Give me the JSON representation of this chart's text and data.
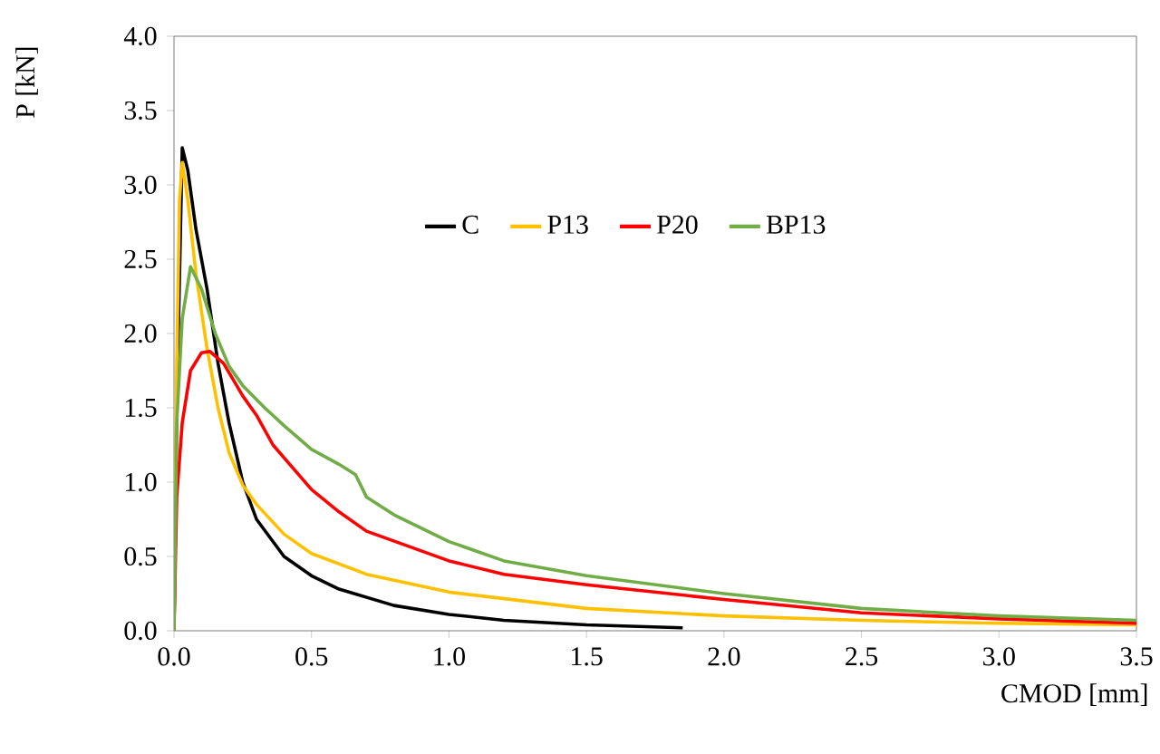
{
  "chart_data": {
    "type": "line",
    "xlabel": "CMOD [mm]",
    "ylabel": "P [kN]",
    "xlim": [
      0,
      3.5
    ],
    "ylim": [
      0,
      4
    ],
    "xticks": [
      {
        "value": 0,
        "label": "0.0"
      },
      0.5,
      {
        "value": 1,
        "label": "1.0"
      },
      1.5,
      {
        "value": 2,
        "label": "2.0"
      },
      2.5,
      {
        "value": 3,
        "label": "3.0"
      },
      3.5
    ],
    "yticks": [
      {
        "value": 0,
        "label": "0.0"
      },
      0.5,
      {
        "value": 1,
        "label": "1.0"
      },
      1.5,
      {
        "value": 2,
        "label": "2.0"
      },
      2.5,
      {
        "value": 3,
        "label": "3.0"
      },
      3.5,
      {
        "value": 4,
        "label": "4.0"
      }
    ],
    "grid": false,
    "legend": "top",
    "marker": "none",
    "line_style": "solid",
    "series": [
      {
        "name": "C",
        "color": "#000000",
        "x": [
          0,
          0.01,
          0.03,
          0.05,
          0.08,
          0.12,
          0.16,
          0.2,
          0.25,
          0.3,
          0.4,
          0.5,
          0.6,
          0.8,
          1.0,
          1.2,
          1.5,
          1.85
        ],
        "values": [
          0,
          1.5,
          3.25,
          3.1,
          2.7,
          2.3,
          1.8,
          1.4,
          1.0,
          0.75,
          0.5,
          0.37,
          0.28,
          0.17,
          0.11,
          0.07,
          0.04,
          0.02
        ]
      },
      {
        "name": "P13",
        "color": "#ffc000",
        "x": [
          0,
          0.01,
          0.02,
          0.03,
          0.05,
          0.08,
          0.12,
          0.16,
          0.2,
          0.25,
          0.3,
          0.4,
          0.5,
          0.7,
          1.0,
          1.5,
          2.0,
          2.5,
          3.0,
          3.5
        ],
        "values": [
          0,
          1.8,
          2.9,
          3.15,
          2.9,
          2.4,
          1.9,
          1.5,
          1.2,
          0.98,
          0.85,
          0.65,
          0.52,
          0.38,
          0.26,
          0.15,
          0.1,
          0.07,
          0.05,
          0.04
        ]
      },
      {
        "name": "P20",
        "color": "#ff0000",
        "x": [
          0,
          0.01,
          0.03,
          0.06,
          0.1,
          0.13,
          0.18,
          0.25,
          0.3,
          0.36,
          0.5,
          0.6,
          0.7,
          1.0,
          1.2,
          1.5,
          2.0,
          2.5,
          3.0,
          3.5
        ],
        "values": [
          0,
          0.9,
          1.4,
          1.75,
          1.87,
          1.88,
          1.8,
          1.58,
          1.45,
          1.25,
          0.95,
          0.8,
          0.67,
          0.47,
          0.38,
          0.31,
          0.21,
          0.12,
          0.08,
          0.05
        ]
      },
      {
        "name": "BP13",
        "color": "#70ad47",
        "x": [
          0,
          0.01,
          0.03,
          0.06,
          0.1,
          0.15,
          0.2,
          0.25,
          0.33,
          0.4,
          0.5,
          0.6,
          0.66,
          0.7,
          0.8,
          1.0,
          1.2,
          1.5,
          2.0,
          2.5,
          3.0,
          3.5
        ],
        "values": [
          0,
          1.4,
          2.1,
          2.45,
          2.3,
          2.0,
          1.78,
          1.65,
          1.5,
          1.38,
          1.22,
          1.12,
          1.05,
          0.9,
          0.78,
          0.6,
          0.47,
          0.37,
          0.25,
          0.15,
          0.1,
          0.07
        ]
      }
    ]
  }
}
